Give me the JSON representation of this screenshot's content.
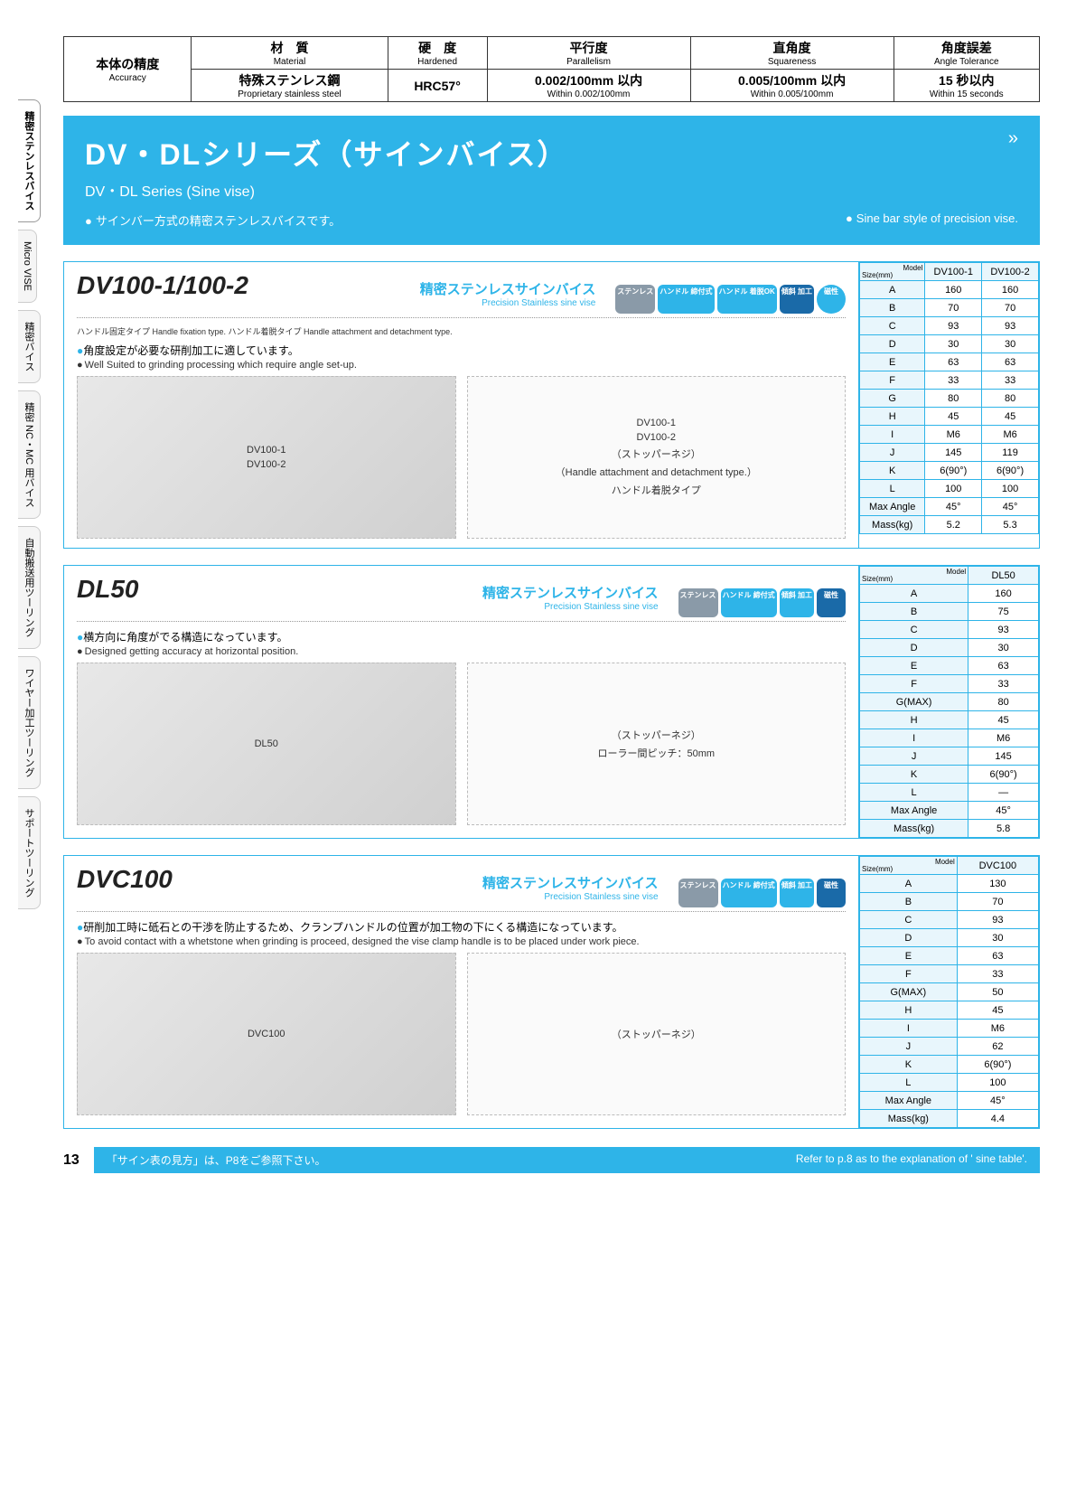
{
  "colors": {
    "accent": "#2eb4e8",
    "text": "#222222",
    "table_border": "#2eb4e8",
    "header_bg": "#e8f6fc"
  },
  "side_tabs": [
    {
      "label": "精密ステンレスバイス",
      "active": true
    },
    {
      "label": "Micro VISE",
      "active": false
    },
    {
      "label": "精密バイス",
      "active": false
    },
    {
      "label": "精密 NC・MC 用バイス",
      "active": false
    },
    {
      "label": "自動搬送用ツーリング",
      "active": false
    },
    {
      "label": "ワイヤー加工ツーリング",
      "active": false
    },
    {
      "label": "サポートツーリング",
      "active": false
    }
  ],
  "accuracy": {
    "label_jp": "本体の精度",
    "label_en": "Accuracy",
    "cols": [
      {
        "head_jp": "材　質",
        "head_en": "Material",
        "val_jp": "特殊ステンレス鋼",
        "val_en": "Proprietary stainless steel"
      },
      {
        "head_jp": "硬　度",
        "head_en": "Hardened",
        "val_jp": "HRC57°",
        "val_en": ""
      },
      {
        "head_jp": "平行度",
        "head_en": "Parallelism",
        "val_jp": "0.002/100mm 以内",
        "val_en": "Within 0.002/100mm"
      },
      {
        "head_jp": "直角度",
        "head_en": "Squareness",
        "val_jp": "0.005/100mm 以内",
        "val_en": "Within 0.005/100mm"
      },
      {
        "head_jp": "角度誤差",
        "head_en": "Angle Tolerance",
        "val_jp": "15 秒以内",
        "val_en": "Within 15 seconds"
      }
    ]
  },
  "series": {
    "title_jp": "DV・DLシリーズ（サインバイス）",
    "title_en": "DV・DL Series (Sine vise)",
    "note_jp": "サインバー方式の精密ステンレスバイスです。",
    "note_en": "Sine bar style of precision vise."
  },
  "products": [
    {
      "model": "DV100-1/100-2",
      "subtitle_jp": "精密ステンレスサインバイス",
      "subtitle_en": "Precision Stainless sine vise",
      "subtype_jp": "ハンドル固定タイプ Handle fixation type. ハンドル着脱タイプ Handle attachment and detachment type.",
      "badges": [
        "ステンレス",
        "ハンドル\n締付式",
        "ハンドル\n着脱OK",
        "傾斜\n加工",
        "磁性"
      ],
      "desc_jp": "角度設定が必要な研削加工に適しています。",
      "desc_en": "Well Suited to grinding processing which require angle set-up.",
      "photo_labels": [
        "DV100-1",
        "DV100-2"
      ],
      "drawing_labels": [
        "DV100-1",
        "DV100-2",
        "（ストッパーネジ）",
        "（Handle attachment and detachment type.）",
        "ハンドル着脱タイプ"
      ],
      "spec": {
        "model_cols": [
          "DV100-1",
          "DV100-2"
        ],
        "rows": [
          [
            "A",
            "160",
            "160"
          ],
          [
            "B",
            "70",
            "70"
          ],
          [
            "C",
            "93",
            "93"
          ],
          [
            "D",
            "30",
            "30"
          ],
          [
            "E",
            "63",
            "63"
          ],
          [
            "F",
            "33",
            "33"
          ],
          [
            "G",
            "80",
            "80"
          ],
          [
            "H",
            "45",
            "45"
          ],
          [
            "I",
            "M6",
            "M6"
          ],
          [
            "J",
            "145",
            "119"
          ],
          [
            "K",
            "6(90°)",
            "6(90°)"
          ],
          [
            "L",
            "100",
            "100"
          ],
          [
            "Max Angle",
            "45°",
            "45°"
          ],
          [
            "Mass(kg)",
            "5.2",
            "5.3"
          ]
        ]
      }
    },
    {
      "model": "DL50",
      "subtitle_jp": "精密ステンレスサインバイス",
      "subtitle_en": "Precision Stainless sine vise",
      "badges": [
        "ステンレス",
        "ハンドル\n締付式",
        "傾斜\n加工",
        "磁性"
      ],
      "desc_jp": "横方向に角度がでる構造になっています。",
      "desc_en": "Designed getting accuracy at horizontal position.",
      "drawing_labels": [
        "（ストッパーネジ）",
        "ローラー間ピッチ：50mm"
      ],
      "spec": {
        "model_cols": [
          "DL50"
        ],
        "rows": [
          [
            "A",
            "160"
          ],
          [
            "B",
            "75"
          ],
          [
            "C",
            "93"
          ],
          [
            "D",
            "30"
          ],
          [
            "E",
            "63"
          ],
          [
            "F",
            "33"
          ],
          [
            "G(MAX)",
            "80"
          ],
          [
            "H",
            "45"
          ],
          [
            "I",
            "M6"
          ],
          [
            "J",
            "145"
          ],
          [
            "K",
            "6(90°)"
          ],
          [
            "L",
            "—"
          ],
          [
            "Max Angle",
            "45°"
          ],
          [
            "Mass(kg)",
            "5.8"
          ]
        ]
      }
    },
    {
      "model": "DVC100",
      "subtitle_jp": "精密ステンレスサインバイス",
      "subtitle_en": "Precision Stainless sine vise",
      "badges": [
        "ステンレス",
        "ハンドル\n締付式",
        "傾斜\n加工",
        "磁性"
      ],
      "desc_jp": "研削加工時に砥石との干渉を防止するため、クランプハンドルの位置が加工物の下にくる構造になっています。",
      "desc_en": "To avoid contact with a whetstone when grinding is proceed, designed the vise clamp handle is to be placed under work piece.",
      "drawing_labels": [
        "（ストッパーネジ）"
      ],
      "spec": {
        "model_cols": [
          "DVC100"
        ],
        "rows": [
          [
            "A",
            "130"
          ],
          [
            "B",
            "70"
          ],
          [
            "C",
            "93"
          ],
          [
            "D",
            "30"
          ],
          [
            "E",
            "63"
          ],
          [
            "F",
            "33"
          ],
          [
            "G(MAX)",
            "50"
          ],
          [
            "H",
            "45"
          ],
          [
            "I",
            "M6"
          ],
          [
            "J",
            "62"
          ],
          [
            "K",
            "6(90°)"
          ],
          [
            "L",
            "100"
          ],
          [
            "Max Angle",
            "45°"
          ],
          [
            "Mass(kg)",
            "4.4"
          ]
        ]
      }
    }
  ],
  "footer": {
    "page_num": "13",
    "note_jp": "「サイン表の見方」は、P8をご参照下さい。",
    "note_en": "Refer to p.8 as to the explanation of ' sine table'."
  },
  "spec_header": {
    "model": "Model",
    "size": "Size(mm)"
  }
}
